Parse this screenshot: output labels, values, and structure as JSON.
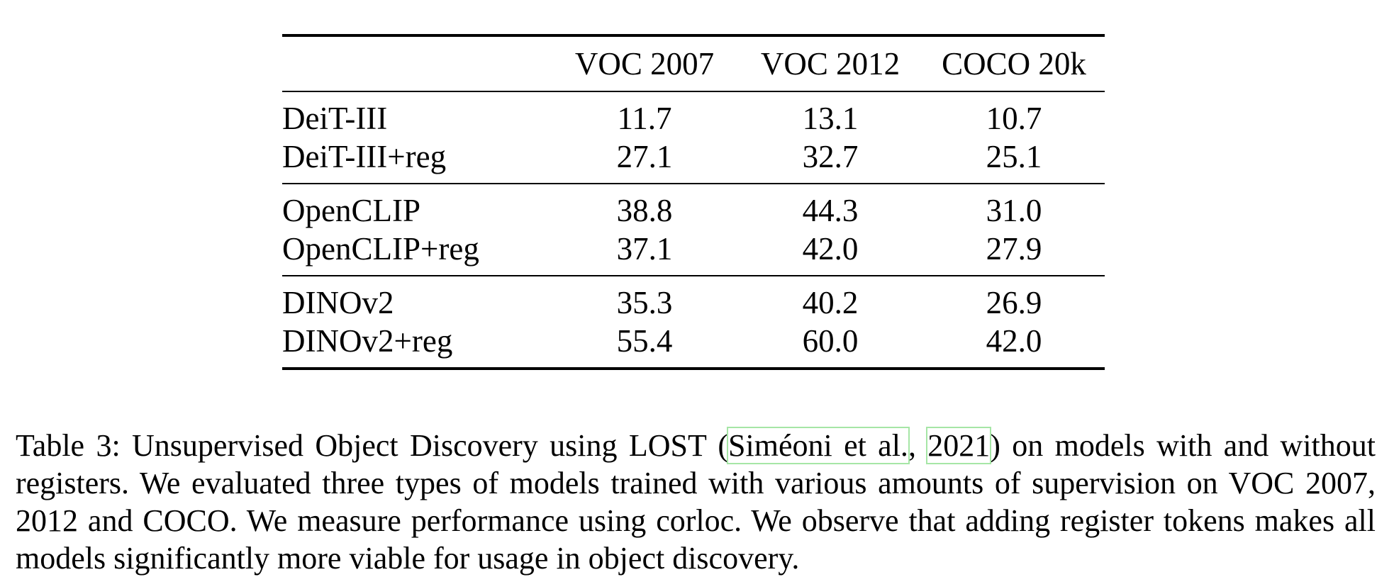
{
  "table": {
    "columns": [
      "",
      "VOC 2007",
      "VOC 2012",
      "COCO 20k"
    ],
    "groups": [
      {
        "rows": [
          {
            "model": "DeiT-III",
            "values": [
              "11.7",
              "13.1",
              "10.7"
            ]
          },
          {
            "model": "DeiT-III+reg",
            "values": [
              "27.1",
              "32.7",
              "25.1"
            ]
          }
        ]
      },
      {
        "rows": [
          {
            "model": "OpenCLIP",
            "values": [
              "38.8",
              "44.3",
              "31.0"
            ]
          },
          {
            "model": "OpenCLIP+reg",
            "values": [
              "37.1",
              "42.0",
              "27.9"
            ]
          }
        ]
      },
      {
        "rows": [
          {
            "model": "DINOv2",
            "values": [
              "35.3",
              "40.2",
              "26.9"
            ]
          },
          {
            "model": "DINOv2+reg",
            "values": [
              "55.4",
              "60.0",
              "42.0"
            ]
          }
        ]
      }
    ]
  },
  "caption": {
    "prefix": "Table 3: Unsupervised Object Discovery using LOST (",
    "cite_authors": "Siméoni et al.",
    "cite_sep": ", ",
    "cite_year": "2021",
    "suffix": ") on models with and without registers. We evaluated three types of models trained with various amounts of supervision on VOC 2007, 2012 and COCO. We measure performance using corloc. We observe that adding register tokens makes all models significantly more viable for usage in object discovery.",
    "cite_box_color": "#a6e6a6"
  }
}
